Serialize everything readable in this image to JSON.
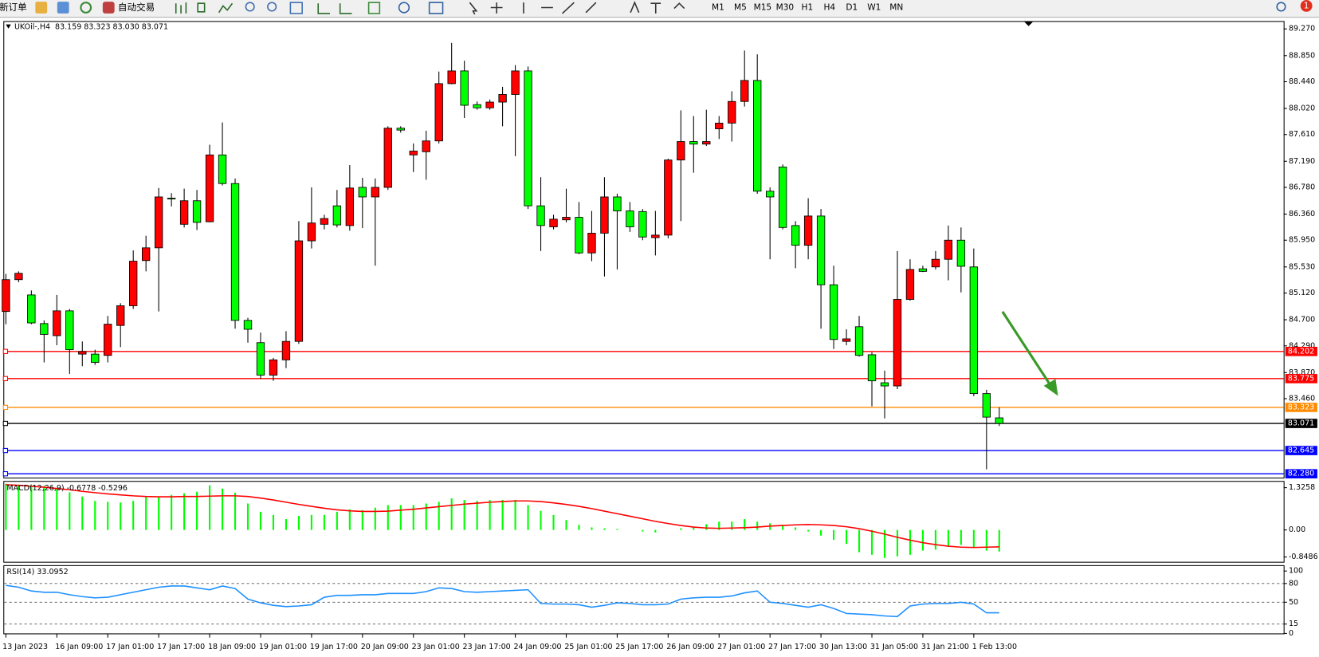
{
  "toolbar": {
    "new_order": "新订单",
    "auto_trading": "自动交易",
    "timeframes": [
      "M1",
      "M5",
      "M15",
      "M30",
      "H1",
      "H4",
      "D1",
      "W1",
      "MN"
    ],
    "notification_count": "1"
  },
  "chart_data": [
    {
      "type": "candlestick",
      "title": "UKOil-,H4  83.159 83.323 83.030 83.071",
      "categories": [
        "13 Jan 2023",
        null,
        null,
        null,
        "16 Jan 09:00",
        null,
        null,
        null,
        "17 Jan 01:00",
        null,
        null,
        null,
        "17 Jan 17:00",
        null,
        null,
        null,
        "18 Jan 09:00",
        null,
        null,
        null,
        "19 Jan 01:00",
        null,
        null,
        null,
        "19 Jan 17:00",
        null,
        null,
        null,
        "20 Jan 09:00",
        null,
        null,
        null,
        "23 Jan 01:00",
        null,
        null,
        null,
        "23 Jan 17:00",
        null,
        null,
        null,
        "24 Jan 09:00",
        null,
        null,
        null,
        "25 Jan 01:00",
        null,
        null,
        null,
        "25 Jan 17:00",
        null,
        null,
        null,
        "26 Jan 09:00",
        null,
        null,
        null,
        "27 Jan 01:00",
        null,
        null,
        null,
        "27 Jan 17:00",
        null,
        null,
        null,
        "30 Jan 13:00",
        null,
        null,
        null,
        "31 Jan 05:00",
        null,
        null,
        null,
        "31 Jan 21:00",
        null,
        null,
        null,
        "1 Feb 13:00",
        null,
        null
      ],
      "open": [
        84.83,
        85.33,
        85.09,
        84.64,
        84.45,
        84.84,
        84.16,
        84.16,
        84.14,
        84.61,
        84.92,
        85.63,
        85.83,
        86.61,
        86.2,
        86.57,
        86.24,
        87.29,
        86.84,
        84.69,
        84.34,
        83.83,
        84.07,
        84.36,
        85.94,
        86.2,
        86.49,
        86.18,
        86.78,
        86.63,
        86.78,
        87.71,
        87.29,
        87.34,
        87.51,
        88.41,
        88.61,
        88.08,
        88.03,
        88.12,
        88.24,
        88.61,
        86.49,
        86.16,
        86.27,
        86.31,
        85.75,
        86.06,
        86.63,
        86.41,
        86.4,
        85.99,
        86.03,
        87.21,
        87.5,
        87.46,
        87.7,
        87.79,
        88.13,
        88.46,
        86.72,
        87.1,
        86.18,
        85.87,
        86.33,
        85.25,
        84.36,
        84.59,
        84.15,
        83.71,
        83.66,
        85.02,
        85.5,
        85.53,
        85.65,
        85.95,
        85.53,
        83.54,
        83.159
      ],
      "high": [
        85.42,
        85.46,
        85.16,
        84.69,
        85.09,
        84.87,
        84.36,
        84.23,
        84.76,
        84.96,
        85.79,
        86.02,
        86.77,
        86.69,
        86.76,
        86.74,
        87.45,
        87.8,
        86.92,
        84.73,
        84.5,
        84.1,
        84.52,
        86.25,
        86.78,
        86.35,
        86.74,
        87.13,
        86.93,
        86.92,
        87.74,
        87.74,
        87.47,
        87.67,
        88.6,
        89.05,
        88.77,
        88.13,
        88.16,
        88.36,
        88.7,
        88.68,
        86.94,
        86.35,
        86.76,
        86.55,
        86.41,
        86.94,
        86.68,
        86.55,
        86.44,
        86.41,
        87.23,
        87.99,
        87.9,
        88.0,
        87.9,
        88.29,
        88.93,
        88.87,
        86.78,
        87.14,
        86.25,
        86.61,
        86.44,
        85.55,
        84.55,
        84.76,
        84.19,
        83.9,
        85.78,
        85.65,
        85.55,
        85.78,
        86.18,
        86.15,
        85.82,
        83.6,
        83.323
      ],
      "low": [
        84.63,
        85.29,
        84.63,
        84.03,
        84.3,
        83.85,
        83.97,
        83.99,
        84.03,
        84.27,
        84.87,
        85.46,
        84.83,
        86.48,
        86.15,
        86.11,
        86.23,
        86.81,
        84.56,
        84.34,
        83.77,
        83.74,
        83.94,
        84.32,
        85.82,
        86.12,
        86.15,
        86.1,
        86.14,
        85.55,
        86.74,
        87.64,
        87.02,
        86.9,
        87.47,
        88.4,
        87.87,
        88.0,
        88.0,
        87.74,
        87.27,
        86.44,
        85.78,
        86.12,
        86.23,
        85.73,
        85.62,
        85.38,
        85.49,
        86.08,
        85.95,
        85.71,
        85.98,
        86.25,
        87.01,
        87.43,
        87.54,
        87.5,
        88.05,
        86.68,
        85.65,
        86.12,
        85.51,
        85.65,
        84.56,
        84.24,
        84.3,
        84.12,
        83.34,
        83.15,
        83.61,
        85.0,
        85.45,
        85.49,
        85.32,
        85.13,
        83.5,
        82.35,
        83.03
      ],
      "close": [
        85.33,
        85.43,
        84.65,
        84.47,
        84.84,
        84.23,
        84.2,
        84.03,
        84.63,
        84.92,
        85.62,
        85.83,
        86.63,
        86.6,
        86.57,
        86.23,
        87.29,
        86.84,
        84.69,
        84.55,
        83.83,
        84.07,
        84.36,
        85.94,
        86.22,
        86.29,
        86.19,
        86.77,
        86.63,
        86.78,
        87.71,
        87.68,
        87.35,
        87.51,
        88.41,
        88.61,
        88.07,
        88.03,
        88.12,
        88.24,
        88.61,
        86.49,
        86.18,
        86.28,
        86.31,
        85.75,
        86.06,
        86.63,
        86.41,
        86.16,
        86.0,
        86.03,
        87.21,
        87.5,
        87.46,
        87.5,
        87.79,
        88.13,
        88.46,
        86.72,
        86.63,
        86.15,
        85.87,
        86.33,
        85.25,
        84.39,
        84.4,
        84.14,
        83.74,
        83.66,
        85.02,
        85.49,
        85.46,
        85.65,
        85.95,
        85.54,
        83.54,
        83.17,
        83.071
      ],
      "up_color": "#ff0000",
      "down_color": "#00ff00",
      "ylim": [
        82.22,
        89.38
      ],
      "yticks": [
        {
          "value": 89.27,
          "label": "89.270"
        },
        {
          "value": 88.85,
          "label": "88.850"
        },
        {
          "value": 88.44,
          "label": "88.440"
        },
        {
          "value": 88.02,
          "label": "88.020"
        },
        {
          "value": 87.61,
          "label": "87.610"
        },
        {
          "value": 87.19,
          "label": "87.190"
        },
        {
          "value": 86.78,
          "label": "86.780"
        },
        {
          "value": 86.36,
          "label": "86.360"
        },
        {
          "value": 85.95,
          "label": "85.950"
        },
        {
          "value": 85.53,
          "label": "85.530"
        },
        {
          "value": 85.12,
          "label": "85.120"
        },
        {
          "value": 84.7,
          "label": "84.700"
        },
        {
          "value": 84.29,
          "label": "84.290"
        },
        {
          "value": 83.87,
          "label": "83.870"
        },
        {
          "value": 83.46,
          "label": "83.460"
        }
      ],
      "levels": [
        {
          "value": 84.202,
          "label": "84.202",
          "color": "#ff0000"
        },
        {
          "value": 83.775,
          "label": "83.775",
          "color": "#ff0000"
        },
        {
          "value": 83.323,
          "label": "83.323",
          "color": "#ff8c00"
        },
        {
          "value": 83.071,
          "label": "83.071",
          "color": "#000000"
        },
        {
          "value": 82.645,
          "label": "82.645",
          "color": "#0000ff"
        },
        {
          "value": 82.28,
          "label": "82.280",
          "color": "#0000ff"
        }
      ]
    },
    {
      "type": "macd",
      "title": "MACD(12,26,9) -0.6778 -0.5296",
      "color": "#00ff00",
      "signal_color": "#ff0000",
      "values": [
        1.45,
        1.42,
        1.4,
        1.38,
        1.3,
        1.18,
        1.05,
        0.91,
        0.88,
        0.86,
        0.91,
        1.04,
        1.04,
        1.1,
        1.15,
        1.2,
        1.4,
        1.3,
        1.17,
        0.83,
        0.57,
        0.47,
        0.34,
        0.44,
        0.47,
        0.47,
        0.57,
        0.65,
        0.62,
        0.7,
        0.78,
        0.78,
        0.78,
        0.83,
        0.88,
        0.99,
        0.94,
        0.91,
        0.94,
        0.94,
        0.94,
        0.78,
        0.6,
        0.47,
        0.31,
        0.16,
        0.08,
        0.05,
        0.03,
        0,
        -0.05,
        -0.08,
        0,
        0.05,
        0.1,
        0.18,
        0.26,
        0.26,
        0.34,
        0.26,
        0.21,
        0.16,
        0.08,
        -0.05,
        -0.18,
        -0.31,
        -0.44,
        -0.7,
        -0.78,
        -0.88,
        -0.83,
        -0.78,
        -0.65,
        -0.62,
        -0.52,
        -0.47,
        -0.57,
        -0.65,
        -0.6778
      ],
      "signal": [
        1.42,
        1.4,
        1.37,
        1.34,
        1.3,
        1.26,
        1.21,
        1.17,
        1.13,
        1.1,
        1.07,
        1.05,
        1.04,
        1.04,
        1.05,
        1.05,
        1.06,
        1.07,
        1.07,
        1.05,
        1.0,
        0.94,
        0.87,
        0.8,
        0.74,
        0.68,
        0.63,
        0.6,
        0.58,
        0.58,
        0.59,
        0.62,
        0.65,
        0.69,
        0.73,
        0.77,
        0.81,
        0.84,
        0.87,
        0.89,
        0.91,
        0.91,
        0.89,
        0.85,
        0.8,
        0.74,
        0.67,
        0.59,
        0.51,
        0.43,
        0.35,
        0.27,
        0.2,
        0.14,
        0.09,
        0.06,
        0.05,
        0.06,
        0.07,
        0.09,
        0.12,
        0.14,
        0.16,
        0.17,
        0.16,
        0.14,
        0.1,
        0.04,
        -0.04,
        -0.13,
        -0.23,
        -0.32,
        -0.4,
        -0.46,
        -0.51,
        -0.54,
        -0.55,
        -0.54,
        -0.5296
      ],
      "ylim": [
        -1.0,
        1.51
      ],
      "yticks": [
        1.3258,
        {
          "value": 0,
          "label": "0.00"
        },
        -0.8486
      ]
    },
    {
      "type": "line",
      "title": "RSI(14) 33.0952",
      "color": "#1e90ff",
      "values": [
        77,
        74,
        68,
        66,
        66,
        62,
        59,
        57,
        58,
        62,
        66,
        70,
        74,
        76,
        76,
        73,
        70,
        76,
        72,
        55,
        49,
        45,
        43,
        44,
        46,
        58,
        61,
        61,
        62,
        62,
        64,
        64,
        64,
        67,
        73,
        72,
        67,
        66,
        67,
        68,
        69,
        70,
        48,
        47,
        47,
        46,
        42,
        45,
        49,
        48,
        46,
        46,
        47,
        55,
        57,
        58,
        58,
        60,
        65,
        68,
        50,
        48,
        45,
        42,
        46,
        40,
        32,
        31,
        30,
        28,
        27,
        44,
        47,
        48,
        48,
        50,
        47,
        33,
        33.0952
      ],
      "ylim": [
        0,
        108
      ],
      "yticks": [
        100,
        80,
        50,
        15,
        0
      ],
      "levels": [
        80,
        50,
        15
      ]
    }
  ]
}
